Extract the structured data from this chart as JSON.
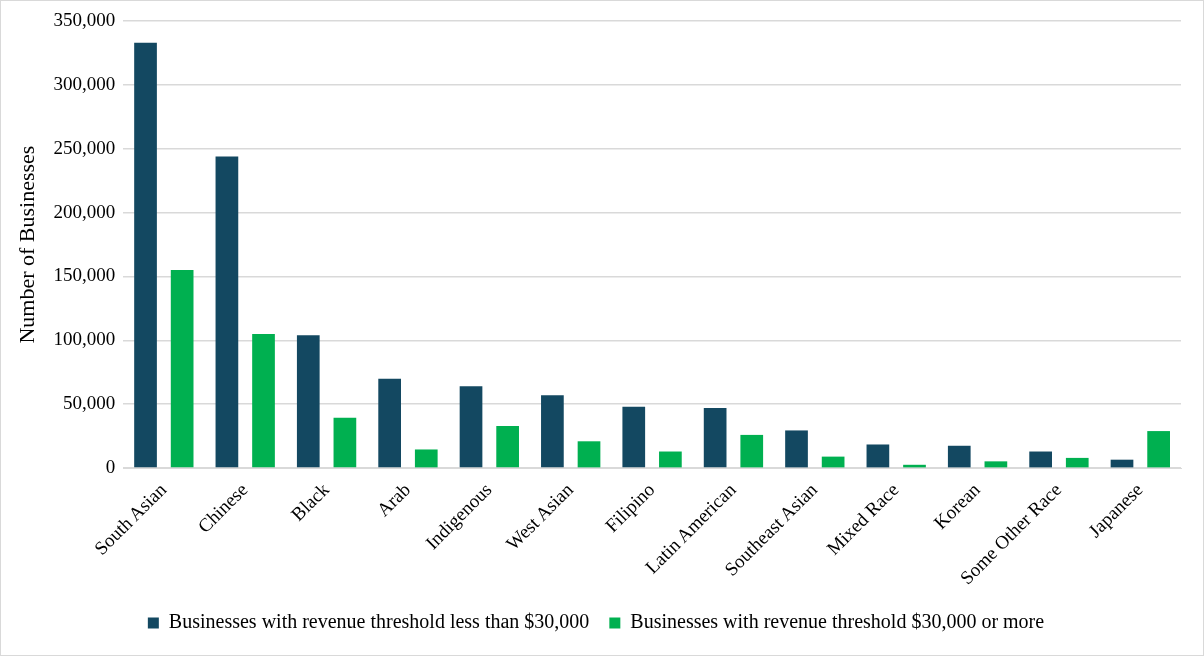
{
  "chart_data": {
    "type": "bar",
    "ylabel": "Number of Businesses",
    "categories": [
      "South Asian",
      "Chinese",
      "Black",
      "Arab",
      "Indigenous",
      "West Asian",
      "Filipino",
      "Latin American",
      "Southeast Asian",
      "Mixed Race",
      "Korean",
      "Some Other Race",
      "Japanese"
    ],
    "series": [
      {
        "name": "Businesses with revenue threshold less than $30,000",
        "color": "#134861",
        "values": [
          333000,
          244000,
          104000,
          70000,
          64000,
          57000,
          48000,
          47000,
          29500,
          18500,
          17500,
          13000,
          6600
        ]
      },
      {
        "name": "Businesses with revenue threshold $30,000 or more",
        "color": "#00b050",
        "values": [
          155000,
          105000,
          39500,
          14600,
          33000,
          21000,
          13000,
          26000,
          9000,
          2600,
          5300,
          8000,
          29000
        ]
      }
    ],
    "ylim": [
      0,
      350000
    ],
    "yticks": [
      {
        "value": 0,
        "label": "0"
      },
      {
        "value": 50000,
        "label": "50,000"
      },
      {
        "value": 100000,
        "label": "100,000"
      },
      {
        "value": 150000,
        "label": "150,000"
      },
      {
        "value": 200000,
        "label": "200,000"
      },
      {
        "value": 250000,
        "label": "250,000"
      },
      {
        "value": 300000,
        "label": "300,000"
      },
      {
        "value": 350000,
        "label": "350,000"
      }
    ],
    "grid": "y",
    "legend": "bottom"
  }
}
